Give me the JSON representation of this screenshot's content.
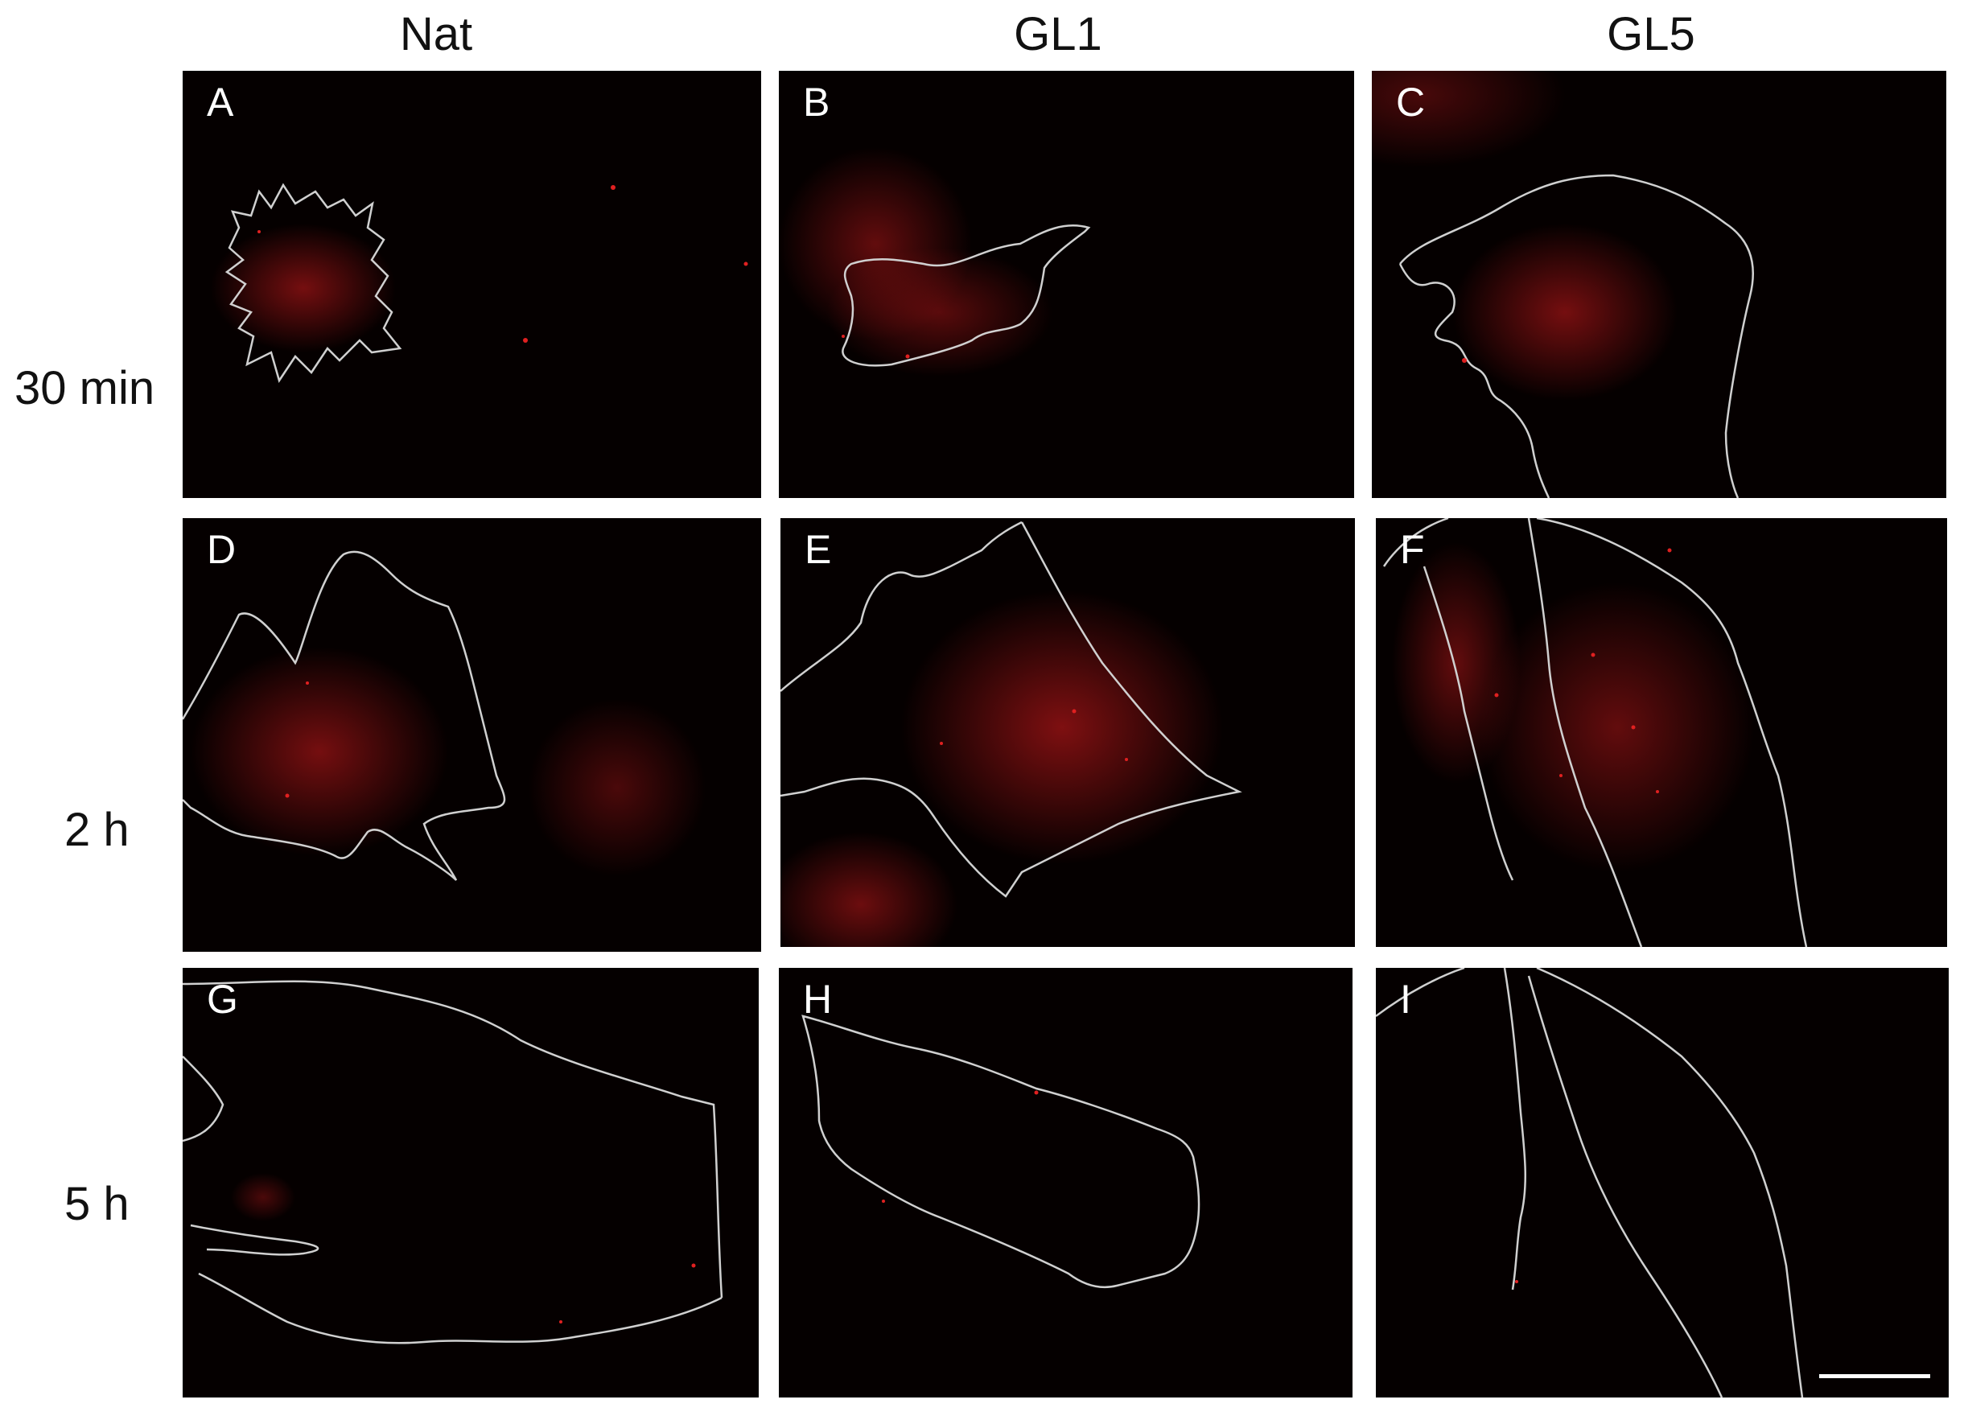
{
  "columns": [
    {
      "label": "Nat"
    },
    {
      "label": "GL1"
    },
    {
      "label": "GL5"
    }
  ],
  "rows": [
    {
      "label": "30 min"
    },
    {
      "label": "2 h"
    },
    {
      "label": "5 h"
    }
  ],
  "panels": [
    {
      "letter": "A",
      "column": "Nat",
      "time": "30 min"
    },
    {
      "letter": "B",
      "column": "GL1",
      "time": "30 min"
    },
    {
      "letter": "C",
      "column": "GL5",
      "time": "30 min"
    },
    {
      "letter": "D",
      "column": "Nat",
      "time": "2 h"
    },
    {
      "letter": "E",
      "column": "GL1",
      "time": "2 h"
    },
    {
      "letter": "F",
      "column": "GL5",
      "time": "2 h"
    },
    {
      "letter": "G",
      "column": "Nat",
      "time": "5 h"
    },
    {
      "letter": "H",
      "column": "GL1",
      "time": "5 h"
    },
    {
      "letter": "I",
      "column": "GL5",
      "time": "5 h"
    }
  ],
  "colors": {
    "background": "#ffffff",
    "panel_background": "#050000",
    "fluorescence": "#d81a1a",
    "cell_outline": "#d0d0d0",
    "text": "#111111",
    "panel_letter": "#ffffff",
    "scale_bar": "#ffffff"
  }
}
